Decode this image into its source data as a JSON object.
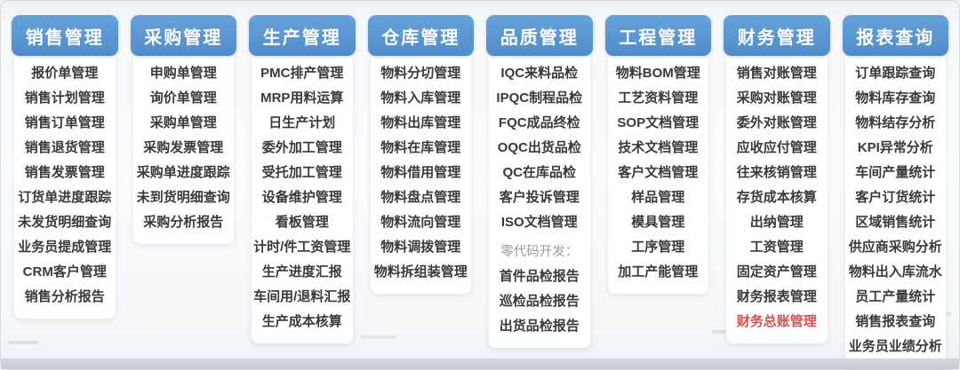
{
  "colors": {
    "header_bg": "#5a96d2",
    "item_text": "#3a3a3a",
    "muted_text": "#9b9b9b",
    "red_text": "#d9504f",
    "bottom_strip": "#c9ced6",
    "card_bg": "#ffffff"
  },
  "board": {
    "columns": [
      {
        "title": "销售管理",
        "items": [
          {
            "label": "报价单管理",
            "style": "normal"
          },
          {
            "label": "销售计划管理",
            "style": "normal"
          },
          {
            "label": "销售订单管理",
            "style": "normal"
          },
          {
            "label": "销售退货管理",
            "style": "normal"
          },
          {
            "label": "销售发票管理",
            "style": "normal"
          },
          {
            "label": "订货单进度跟踪",
            "style": "normal"
          },
          {
            "label": "未发货明细查询",
            "style": "normal"
          },
          {
            "label": "业务员提成管理",
            "style": "normal"
          },
          {
            "label": "CRM客户管理",
            "style": "normal"
          },
          {
            "label": "销售分析报告",
            "style": "normal"
          }
        ]
      },
      {
        "title": "采购管理",
        "items": [
          {
            "label": "申购单管理",
            "style": "normal"
          },
          {
            "label": "询价单管理",
            "style": "normal"
          },
          {
            "label": "采购单管理",
            "style": "normal"
          },
          {
            "label": "采购发票管理",
            "style": "normal"
          },
          {
            "label": "采购单进度跟踪",
            "style": "normal"
          },
          {
            "label": "未到货明细查询",
            "style": "normal"
          },
          {
            "label": "采购分析报告",
            "style": "normal"
          }
        ]
      },
      {
        "title": "生产管理",
        "items": [
          {
            "label": "PMC排产管理",
            "style": "normal"
          },
          {
            "label": "MRP用料运算",
            "style": "normal"
          },
          {
            "label": "日生产计划",
            "style": "normal"
          },
          {
            "label": "委外加工管理",
            "style": "normal"
          },
          {
            "label": "受托加工管理",
            "style": "normal"
          },
          {
            "label": "设备维护管理",
            "style": "normal"
          },
          {
            "label": "看板管理",
            "style": "normal"
          },
          {
            "label": "计时/件工资管理",
            "style": "normal"
          },
          {
            "label": "生产进度汇报",
            "style": "normal"
          },
          {
            "label": "车间用/退料汇报",
            "style": "normal"
          },
          {
            "label": "生产成本核算",
            "style": "normal"
          }
        ]
      },
      {
        "title": "仓库管理",
        "items": [
          {
            "label": "物料分切管理",
            "style": "normal"
          },
          {
            "label": "物料入库管理",
            "style": "normal"
          },
          {
            "label": "物料出库管理",
            "style": "normal"
          },
          {
            "label": "物料在库管理",
            "style": "normal"
          },
          {
            "label": "物料借用管理",
            "style": "normal"
          },
          {
            "label": "物料盘点管理",
            "style": "normal"
          },
          {
            "label": "物料流向管理",
            "style": "normal"
          },
          {
            "label": "物料调拨管理",
            "style": "normal"
          },
          {
            "label": "物料拆组装管理",
            "style": "normal"
          }
        ]
      },
      {
        "title": "品质管理",
        "items": [
          {
            "label": "IQC来料品检",
            "style": "normal"
          },
          {
            "label": "IPQC制程品检",
            "style": "normal"
          },
          {
            "label": "FQC成品终检",
            "style": "normal"
          },
          {
            "label": "OQC出货品检",
            "style": "normal"
          },
          {
            "label": "QC在库品检",
            "style": "normal"
          },
          {
            "label": "客户投诉管理",
            "style": "normal"
          },
          {
            "label": "ISO文档管理",
            "style": "normal"
          },
          {
            "label": "零代码开发：",
            "style": "muted"
          },
          {
            "label": "首件品检报告",
            "style": "normal"
          },
          {
            "label": "巡检品检报告",
            "style": "normal"
          },
          {
            "label": "出货品检报告",
            "style": "normal"
          }
        ]
      },
      {
        "title": "工程管理",
        "items": [
          {
            "label": "物料BOM管理",
            "style": "normal"
          },
          {
            "label": "工艺资料管理",
            "style": "normal"
          },
          {
            "label": "SOP文档管理",
            "style": "normal"
          },
          {
            "label": "技术文档管理",
            "style": "normal"
          },
          {
            "label": "客户文档管理",
            "style": "normal"
          },
          {
            "label": "样品管理",
            "style": "normal"
          },
          {
            "label": "模具管理",
            "style": "normal"
          },
          {
            "label": "工序管理",
            "style": "normal"
          },
          {
            "label": "加工产能管理",
            "style": "normal"
          }
        ]
      },
      {
        "title": "财务管理",
        "items": [
          {
            "label": "销售对账管理",
            "style": "normal"
          },
          {
            "label": "采购对账管理",
            "style": "normal"
          },
          {
            "label": "委外对账管理",
            "style": "normal"
          },
          {
            "label": "应收应付管理",
            "style": "normal"
          },
          {
            "label": "往来核销管理",
            "style": "normal"
          },
          {
            "label": "存货成本核算",
            "style": "normal"
          },
          {
            "label": "出纳管理",
            "style": "normal"
          },
          {
            "label": "工资管理",
            "style": "normal"
          },
          {
            "label": "固定资产管理",
            "style": "normal"
          },
          {
            "label": "财务报表管理",
            "style": "normal"
          },
          {
            "label": "财务总账管理",
            "style": "red"
          }
        ]
      },
      {
        "title": "报表查询",
        "items": [
          {
            "label": "订单跟踪查询",
            "style": "normal"
          },
          {
            "label": "物料库存查询",
            "style": "normal"
          },
          {
            "label": "物料结存分析",
            "style": "normal"
          },
          {
            "label": "KPI异常分析",
            "style": "normal"
          },
          {
            "label": "车间产量统计",
            "style": "normal"
          },
          {
            "label": "客户订货统计",
            "style": "normal"
          },
          {
            "label": "区域销售统计",
            "style": "normal"
          },
          {
            "label": "供应商采购分析",
            "style": "normal"
          },
          {
            "label": "物料出入库流水",
            "style": "normal"
          },
          {
            "label": "员工产量统计",
            "style": "normal"
          },
          {
            "label": "销售报表查询",
            "style": "normal"
          },
          {
            "label": "业务员业绩分析",
            "style": "normal"
          }
        ]
      }
    ]
  }
}
